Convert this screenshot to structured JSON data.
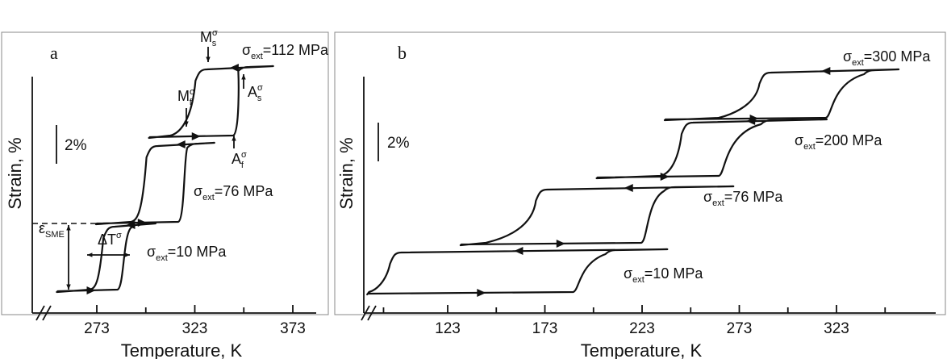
{
  "chart_data": [
    {
      "panel": "a",
      "type": "line",
      "xlabel": "Temperature, K",
      "ylabel": "Strain, %",
      "xticks": [
        273,
        323,
        373
      ],
      "xlim": [
        245,
        385
      ],
      "scale_bar": "2%",
      "series": [
        {
          "stress": "10",
          "cycle": {
            "Mf": 272,
            "Ms": 278,
            "As": 286,
            "Af": 291,
            "low": 253,
            "high": 303
          },
          "label": {
            "prefix": "σ",
            "sub": "ext",
            "text": "=10 MPa"
          }
        },
        {
          "stress": "76",
          "cycle": {
            "Mf": 293,
            "Ms": 300,
            "As": 317,
            "Af": 320,
            "low": 273,
            "high": 333
          },
          "label": {
            "prefix": "σ",
            "sub": "ext",
            "text": "=76 MPa"
          }
        },
        {
          "stress": "112",
          "cycle": {
            "Mf": 313,
            "Ms": 325,
            "As": 345,
            "Af": 346,
            "low": 300,
            "high": 363
          },
          "label": {
            "prefix": "σ",
            "sub": "ext",
            "text": "=112 MPa"
          }
        }
      ],
      "annotations": {
        "Ms": {
          "main": "M",
          "sub": "s",
          "sup": "σ"
        },
        "Mf": {
          "main": "M",
          "sub": "f",
          "sup": "σ"
        },
        "As": {
          "main": "A",
          "sub": "s",
          "sup": "σ"
        },
        "Af": {
          "main": "A",
          "sub": "f",
          "sup": "σ"
        },
        "dT": {
          "main": "ΔT",
          "sup": "σ"
        },
        "eps": {
          "main": "ε",
          "sub": "SME"
        }
      }
    },
    {
      "panel": "b",
      "type": "line",
      "xlabel": "Temperature, K",
      "ylabel": "Strain, %",
      "xticks": [
        123,
        173,
        223,
        273,
        323
      ],
      "xlim": [
        80,
        360
      ],
      "scale_bar": "2%",
      "series": [
        {
          "stress": "10",
          "cycle": {
            "Mf": 85,
            "Ms": 95,
            "As": 190,
            "Af": 205,
            "low": 82,
            "high": 236
          },
          "label": {
            "prefix": "σ",
            "sub": "ext",
            "text": "=10 MPa"
          }
        },
        {
          "stress": "76",
          "cycle": {
            "Mf": 145,
            "Ms": 170,
            "As": 225,
            "Af": 235,
            "low": 130,
            "high": 270
          },
          "label": {
            "prefix": "σ",
            "sub": "ext",
            "text": "=76 MPa"
          }
        },
        {
          "stress": "200",
          "cycle": {
            "Mf": 235,
            "Ms": 245,
            "As": 265,
            "Af": 285,
            "low": 200,
            "high": 318
          },
          "label": {
            "prefix": "σ",
            "sub": "ext",
            "text": "=200 MPa"
          }
        },
        {
          "stress": "300",
          "cycle": {
            "Mf": 265,
            "Ms": 285,
            "As": 320,
            "Af": 338,
            "low": 235,
            "high": 355
          },
          "label": {
            "prefix": "σ",
            "sub": "ext",
            "text": "=300 MPa"
          }
        }
      ]
    }
  ]
}
